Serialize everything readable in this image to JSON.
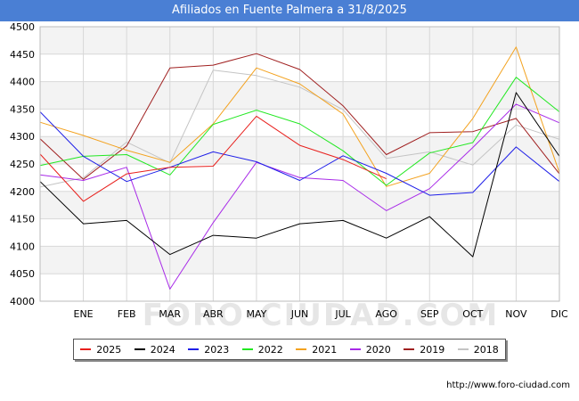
{
  "title": "Afiliados en Fuente Palmera a 31/8/2025",
  "source": "http://www.foro-ciudad.com",
  "watermark": "FORO-CIUDAD.COM",
  "chart_data": {
    "type": "line",
    "categories": [
      "",
      "ENE",
      "FEB",
      "MAR",
      "ABR",
      "MAY",
      "JUN",
      "JUL",
      "AGO",
      "SEP",
      "OCT",
      "NOV",
      "DIC"
    ],
    "y_ticks": [
      4000,
      4050,
      4100,
      4150,
      4200,
      4250,
      4300,
      4350,
      4400,
      4450,
      4500
    ],
    "ylim": [
      4000,
      4500
    ],
    "grid": true,
    "legend_position": "bottom",
    "series": [
      {
        "name": "2025",
        "color": "#e8201d",
        "values": [
          4268,
          4182,
          4232,
          4244,
          4246,
          4337,
          4284,
          4258,
          4223,
          null,
          null,
          null,
          null
        ]
      },
      {
        "name": "2024",
        "color": "#000000",
        "values": [
          4218,
          4141,
          4147,
          4085,
          4120,
          4115,
          4141,
          4147,
          4115,
          4154,
          4081,
          4380,
          4264
        ]
      },
      {
        "name": "2023",
        "color": "#1f1fe8",
        "values": [
          4345,
          4264,
          4218,
          4244,
          4272,
          4254,
          4220,
          4265,
          4233,
          4193,
          4198,
          4281,
          4218
        ]
      },
      {
        "name": "2022",
        "color": "#22e822",
        "values": [
          4247,
          4264,
          4267,
          4230,
          4322,
          4348,
          4323,
          4274,
          4211,
          4270,
          4289,
          4408,
          4345
        ]
      },
      {
        "name": "2021",
        "color": "#f3a21f",
        "values": [
          4326,
          4302,
          4275,
          4253,
          4323,
          4425,
          4396,
          4341,
          4209,
          4233,
          4333,
          4463,
          4234
        ]
      },
      {
        "name": "2020",
        "color": "#a82ae8",
        "values": [
          4230,
          4220,
          4244,
          4022,
          4143,
          4253,
          4225,
          4220,
          4165,
          4205,
          4280,
          4359,
          4325
        ]
      },
      {
        "name": "2019",
        "color": "#a02020",
        "values": [
          4296,
          4222,
          4283,
          4425,
          4430,
          4451,
          4422,
          4356,
          4267,
          4307,
          4309,
          4333,
          4232
        ]
      },
      {
        "name": "2018",
        "color": "#c4c4c4",
        "values": [
          4208,
          4225,
          4290,
          4252,
          4421,
          4411,
          4390,
          4349,
          4260,
          4272,
          4248,
          4321,
          4295
        ]
      }
    ]
  }
}
